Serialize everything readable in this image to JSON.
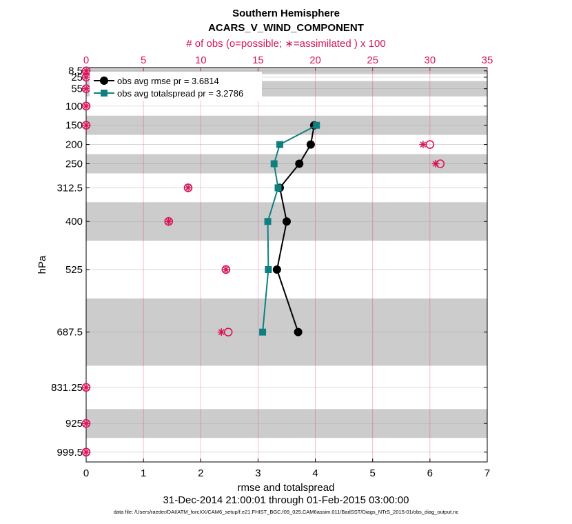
{
  "chart_data": {
    "type": "line",
    "title": "Southern Hemisphere",
    "subtitle": "ACARS_V_WIND_COMPONENT",
    "xlabel": "rmse and totalspread",
    "xlabel_top": "# of obs (o=possible; ∗=assimilated ) x 100",
    "ylabel": "hPa",
    "date_range": "31-Dec-2014 21:00:01 through 01-Feb-2015 03:00:00",
    "footnote": "data file: /Users/raeder/DAI/ATM_forcXX/CAM6_setup/f.e21.FHIST_BGC.f09_025.CAM6assim.011/BadSST/Diags_NTrS_2015-01/obs_diag_output.nc",
    "xlim": [
      0,
      7
    ],
    "xlim_top": [
      0,
      35
    ],
    "ylim": [
      1025,
      0
    ],
    "x_ticks": [
      "0",
      "1",
      "2",
      "3",
      "4",
      "5",
      "6",
      "7"
    ],
    "x_ticks_top": [
      "0",
      "5",
      "10",
      "15",
      "20",
      "25",
      "30",
      "35"
    ],
    "levels": [
      "8.5",
      "25",
      "55",
      "100",
      "150",
      "200",
      "250",
      "312.5",
      "400",
      "525",
      "687.5",
      "831.25",
      "925",
      "999.5"
    ],
    "level_values": [
      8.5,
      25,
      55,
      100,
      150,
      200,
      250,
      312.5,
      400,
      525,
      687.5,
      831.25,
      925,
      999.5
    ],
    "shaded_bands": [
      [
        0,
        17
      ],
      [
        35,
        75
      ],
      [
        125,
        175
      ],
      [
        225,
        275
      ],
      [
        350,
        450
      ],
      [
        600,
        775
      ],
      [
        887.5,
        962.5
      ]
    ],
    "series": [
      {
        "name": "obs avg rmse",
        "legend": "obs avg rmse pr = 3.6814",
        "color": "#000000",
        "points": [
          [
            3.98,
            150
          ],
          [
            3.92,
            200
          ],
          [
            3.72,
            250
          ],
          [
            3.38,
            312.5
          ],
          [
            3.5,
            400
          ],
          [
            3.33,
            525
          ],
          [
            3.7,
            687.5
          ]
        ]
      },
      {
        "name": "obs avg totalspread",
        "legend": "obs avg totalspread pr = 3.2786",
        "color": "#0f8080",
        "points": [
          [
            4.02,
            150
          ],
          [
            3.38,
            200
          ],
          [
            3.28,
            250
          ],
          [
            3.35,
            312.5
          ],
          [
            3.17,
            400
          ],
          [
            3.18,
            525
          ],
          [
            3.08,
            687.5
          ]
        ]
      }
    ],
    "obs_counts": {
      "color": "#d6145a",
      "possible": [
        [
          0,
          8.5
        ],
        [
          0,
          25
        ],
        [
          0,
          55
        ],
        [
          0,
          100
        ],
        [
          0,
          150
        ],
        [
          30.0,
          200
        ],
        [
          30.9,
          250
        ],
        [
          8.9,
          312.5
        ],
        [
          7.2,
          400
        ],
        [
          12.2,
          525
        ],
        [
          12.4,
          687.5
        ],
        [
          0,
          831.25
        ],
        [
          0,
          925
        ],
        [
          0,
          999.5
        ]
      ],
      "assimilated": [
        [
          0,
          8.5
        ],
        [
          0,
          25
        ],
        [
          0,
          55
        ],
        [
          0,
          100
        ],
        [
          0,
          150
        ],
        [
          29.4,
          200
        ],
        [
          30.5,
          250
        ],
        [
          8.9,
          312.5
        ],
        [
          7.2,
          400
        ],
        [
          12.2,
          525
        ],
        [
          11.8,
          687.5
        ],
        [
          0,
          831.25
        ],
        [
          0,
          925
        ],
        [
          0,
          999.5
        ]
      ]
    }
  }
}
